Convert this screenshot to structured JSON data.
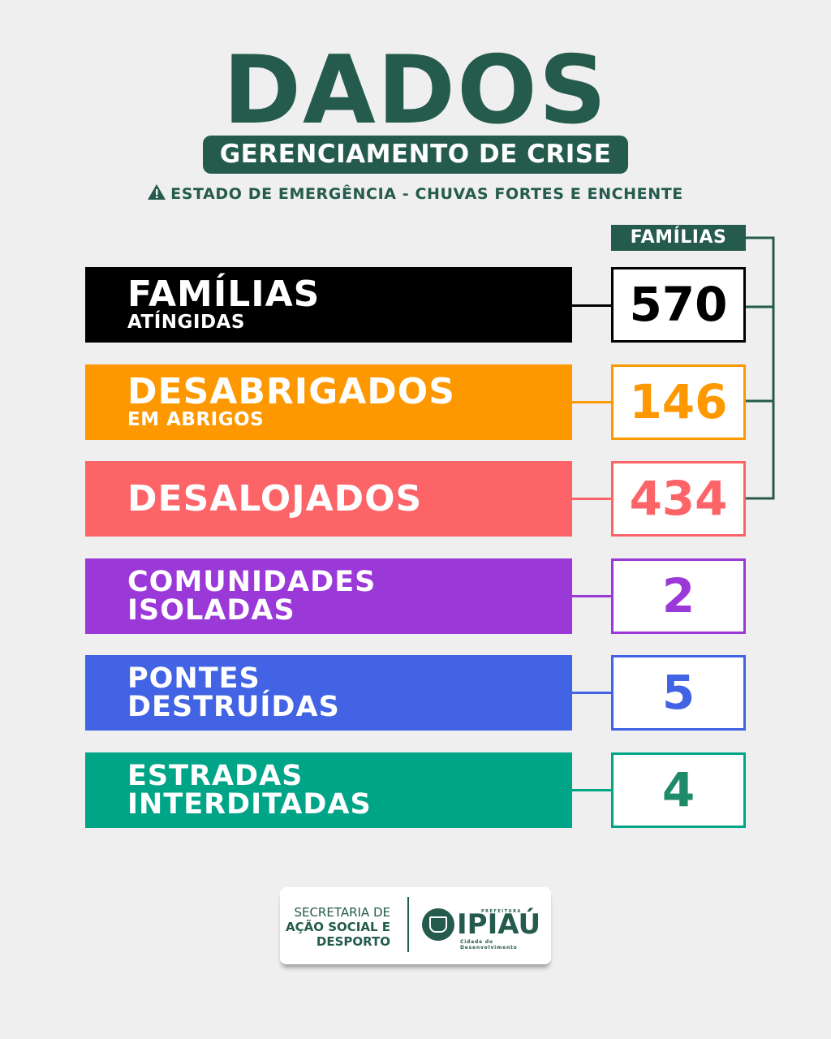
{
  "header": {
    "title": "DADOS",
    "subtitle": "GERENCIAMENTO DE CRISE",
    "warning_icon": "warning-triangle-icon",
    "warning_text": "ESTADO DE EMERGÊNCIA - CHUVAS FORTES E ENCHENTE"
  },
  "families_label": "FAMÍLIAS",
  "colors": {
    "brand": "#245b4c",
    "background": "#efefef"
  },
  "rows": [
    {
      "main": "FAMÍLIAS",
      "sub": "ATÍNGIDAS",
      "value": "570",
      "color": "#000000",
      "text_color": "#000000"
    },
    {
      "main": "DESABRIGADOS",
      "sub": "EM ABRIGOS",
      "value": "146",
      "color": "#fd9800",
      "text_color": "#fd9800"
    },
    {
      "main": "DESALOJADOS",
      "value": "434",
      "color": "#fd6468",
      "text_color": "#fd6468"
    },
    {
      "line1": "COMUNIDADES",
      "line2": "ISOLADAS",
      "value": "2",
      "color": "#9b38d8",
      "text_color": "#9b38d8"
    },
    {
      "line1": "PONTES",
      "line2": "DESTRUÍDAS",
      "value": "5",
      "color": "#4163e4",
      "text_color": "#4163e4"
    },
    {
      "line1": "ESTRADAS",
      "line2": "INTERDITADAS",
      "value": "4",
      "color": "#00a588",
      "text_color": "#1f8a6a"
    }
  ],
  "footer": {
    "secretaria_line1": "SECRETARIA DE",
    "secretaria_line2": "AÇÃO SOCIAL E",
    "secretaria_line3": "DESPORTO",
    "prefeitura_label": "PREFEITURA",
    "city_name": "IPIAÚ",
    "city_slogan": "Cidade do Desenvolvimento",
    "seal_icon": "city-seal-icon"
  }
}
